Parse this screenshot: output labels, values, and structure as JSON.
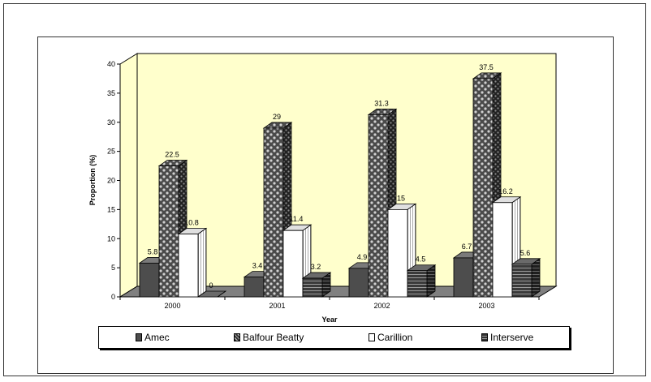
{
  "chart_data": {
    "type": "bar",
    "title": "",
    "xlabel": "Year",
    "ylabel": "Proportion (%)",
    "ylim": [
      0,
      40
    ],
    "yticks": [
      "0",
      "5",
      "10",
      "15",
      "20",
      "25",
      "30",
      "35",
      "40"
    ],
    "categories": [
      "2000",
      "2001",
      "2002",
      "2003"
    ],
    "series": [
      {
        "name": "Amec",
        "values": [
          5.8,
          3.4,
          4.9,
          6.7
        ],
        "labels": [
          "5.8",
          "3.4",
          "4.9",
          "6.7"
        ]
      },
      {
        "name": "Balfour Beatty",
        "values": [
          22.5,
          29,
          31.3,
          37.5
        ],
        "labels": [
          "22.5",
          "29",
          "31.3",
          "37.5"
        ]
      },
      {
        "name": "Carillion",
        "values": [
          10.8,
          11.4,
          15,
          16.2
        ],
        "labels": [
          "10.8",
          "11.4",
          "15",
          "16.2"
        ]
      },
      {
        "name": "Interserve",
        "values": [
          0,
          3.2,
          4.5,
          5.6
        ],
        "labels": [
          "0",
          "3.2",
          "4.5",
          "5.6"
        ]
      }
    ],
    "legend_position": "bottom",
    "grid": false,
    "colors": {
      "wall": "#ffffcc",
      "floor": "#808080",
      "amec": "#4d4d4d",
      "balfour_dark": "#333333",
      "balfour_light": "#c8c8c8",
      "carillion": "#ffffff",
      "interserve": "#404040"
    }
  }
}
